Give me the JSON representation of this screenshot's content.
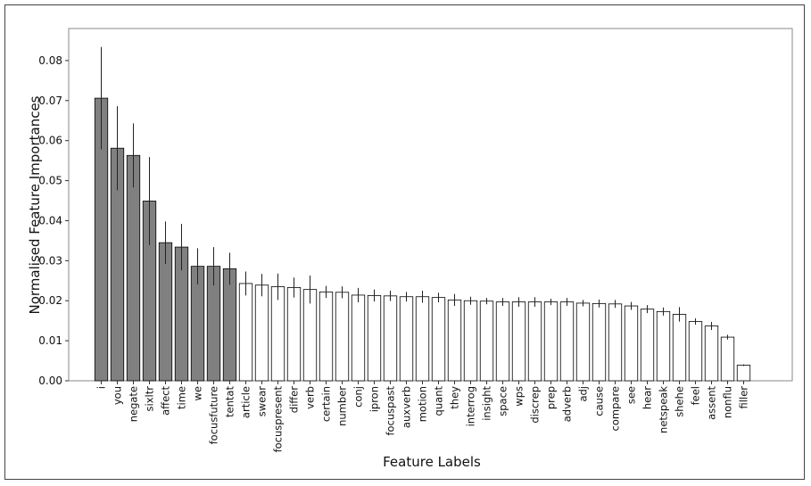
{
  "chart_data": {
    "type": "bar",
    "title": "",
    "xlabel": "Feature Labels",
    "ylabel": "Normalised Feature Importances",
    "ylim": [
      0,
      0.088
    ],
    "yticks": [
      "0.00",
      "0.01",
      "0.02",
      "0.03",
      "0.04",
      "0.05",
      "0.06",
      "0.07",
      "0.08"
    ],
    "grid": false,
    "highlight_color": "#808080",
    "base_color": "#ffffff",
    "edge_color": "#000000",
    "categories": [
      "i",
      "you",
      "negate",
      "sixltr",
      "affect",
      "time",
      "we",
      "focusfuture",
      "tentat",
      "article",
      "swear",
      "focuspresent",
      "differ",
      "verb",
      "certain",
      "number",
      "conj",
      "ipron",
      "focuspast",
      "auxverb",
      "motion",
      "quant",
      "they",
      "interrog",
      "insight",
      "space",
      "wps",
      "discrep",
      "prep",
      "adverb",
      "adj",
      "cause",
      "compare",
      "see",
      "hear",
      "netspeak",
      "shehe",
      "feel",
      "assent",
      "nonflu",
      "filler"
    ],
    "values": [
      0.0706,
      0.0581,
      0.0563,
      0.0449,
      0.0345,
      0.0334,
      0.0286,
      0.0286,
      0.028,
      0.0243,
      0.0239,
      0.0235,
      0.0233,
      0.0228,
      0.0222,
      0.0221,
      0.0214,
      0.0213,
      0.0212,
      0.021,
      0.021,
      0.0208,
      0.0202,
      0.02,
      0.0199,
      0.0197,
      0.0197,
      0.0197,
      0.0197,
      0.0197,
      0.0194,
      0.0193,
      0.0192,
      0.0187,
      0.0179,
      0.0173,
      0.0166,
      0.0148,
      0.0137,
      0.0109,
      0.0039
    ],
    "errors": [
      0.0128,
      0.0105,
      0.008,
      0.011,
      0.0053,
      0.0058,
      0.0045,
      0.0048,
      0.004,
      0.003,
      0.0028,
      0.0033,
      0.0025,
      0.0035,
      0.0015,
      0.0015,
      0.0018,
      0.0015,
      0.0013,
      0.0012,
      0.0015,
      0.0012,
      0.0015,
      0.001,
      0.0008,
      0.001,
      0.0012,
      0.0012,
      0.0008,
      0.001,
      0.0008,
      0.001,
      0.001,
      0.001,
      0.001,
      0.001,
      0.0018,
      0.0008,
      0.001,
      0.0006,
      0.0002
    ],
    "highlight_count": 9
  }
}
